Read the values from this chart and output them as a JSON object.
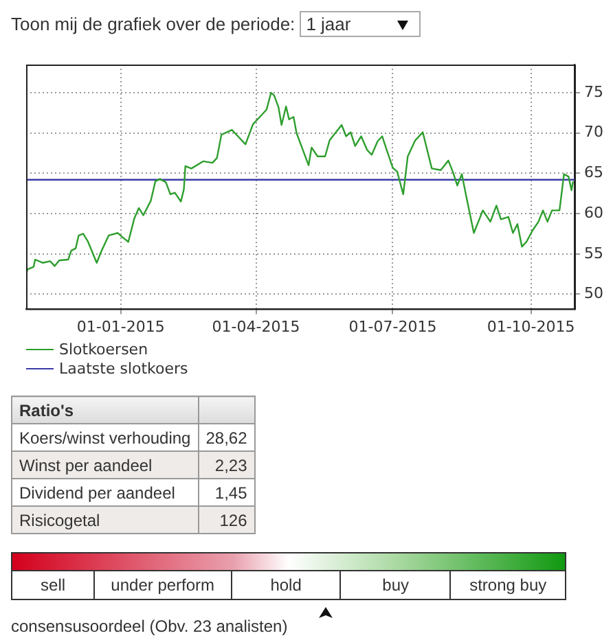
{
  "chart_data": [
    {
      "type": "line",
      "annotations": [
        "Toon mij de grafiek over de periode:",
        "1 jaar"
      ],
      "xlim": [
        "2014-10-30",
        "2015-10-30"
      ],
      "xticks": [
        {
          "value": "2015-01-01",
          "label": "01-01-2015"
        },
        {
          "value": "2015-04-01",
          "label": "01-04-2015"
        },
        {
          "value": "2015-07-01",
          "label": "01-07-2015"
        },
        {
          "value": "2015-10-01",
          "label": "01-10-2015"
        }
      ],
      "ylim": [
        48.2,
        78.5
      ],
      "yticks": [
        50,
        55,
        60,
        65,
        70,
        75
      ],
      "grid": true,
      "legend": "bottom left",
      "series": [
        {
          "name": "Slotkoersen",
          "color": "#2e9e2e",
          "x": [
            "2014-10-30",
            "2014-10-31",
            "2014-11-04",
            "2014-11-05",
            "2014-11-10",
            "2014-11-15",
            "2014-11-18",
            "2014-11-21",
            "2014-11-27",
            "2014-11-29",
            "2014-12-02",
            "2014-12-04",
            "2014-12-07",
            "2014-12-10",
            "2014-12-16",
            "2014-12-19",
            "2014-12-24",
            "2014-12-30",
            "2015-01-02",
            "2015-01-06",
            "2015-01-10",
            "2015-01-13",
            "2015-01-16",
            "2015-01-21",
            "2015-01-24",
            "2015-01-27",
            "2015-01-31",
            "2015-02-03",
            "2015-02-06",
            "2015-02-10",
            "2015-02-12",
            "2015-02-13",
            "2015-02-17",
            "2015-02-25",
            "2015-03-03",
            "2015-03-06",
            "2015-03-09",
            "2015-03-16",
            "2015-03-20",
            "2015-03-25",
            "2015-03-30",
            "2015-04-03",
            "2015-04-08",
            "2015-04-11",
            "2015-04-13",
            "2015-04-16",
            "2015-04-18",
            "2015-04-21",
            "2015-04-23",
            "2015-04-26",
            "2015-04-28",
            "2015-05-01",
            "2015-05-06",
            "2015-05-08",
            "2015-05-12",
            "2015-05-17",
            "2015-05-20",
            "2015-05-28",
            "2015-05-31",
            "2015-06-03",
            "2015-06-06",
            "2015-06-10",
            "2015-06-14",
            "2015-06-17",
            "2015-06-21",
            "2015-06-24",
            "2015-06-27",
            "2015-07-01",
            "2015-07-04",
            "2015-07-08",
            "2015-07-11",
            "2015-07-16",
            "2015-07-21",
            "2015-07-27",
            "2015-08-02",
            "2015-08-07",
            "2015-08-10",
            "2015-08-13",
            "2015-08-16",
            "2015-08-19",
            "2015-08-24",
            "2015-08-27",
            "2015-08-30",
            "2015-09-04",
            "2015-09-08",
            "2015-09-11",
            "2015-09-16",
            "2015-09-19",
            "2015-09-22",
            "2015-09-25",
            "2015-09-28",
            "2015-10-02",
            "2015-10-06",
            "2015-10-09",
            "2015-10-12",
            "2015-10-15",
            "2015-10-20",
            "2015-10-23",
            "2015-10-26",
            "2015-10-28",
            "2015-10-29"
          ],
          "values": [
            52.5,
            53.1,
            53.4,
            54.3,
            53.9,
            54.1,
            53.5,
            54.2,
            54.3,
            55.4,
            55.7,
            57.3,
            57.5,
            56.6,
            53.9,
            55.3,
            57.3,
            57.6,
            57.1,
            56.5,
            59.4,
            60.7,
            59.8,
            61.6,
            64.0,
            64.3,
            63.9,
            62.4,
            62.6,
            61.5,
            63.0,
            65.9,
            65.6,
            66.5,
            66.3,
            66.9,
            69.8,
            70.4,
            69.6,
            68.6,
            71.1,
            71.9,
            72.9,
            75.0,
            74.7,
            73.2,
            71.0,
            73.3,
            71.7,
            72.0,
            70.0,
            68.5,
            66.0,
            68.2,
            67.1,
            67.1,
            69.1,
            71.0,
            69.6,
            70.1,
            68.4,
            69.6,
            67.9,
            67.3,
            69.0,
            69.6,
            67.9,
            65.7,
            65.2,
            62.4,
            67.1,
            69.1,
            70.1,
            65.6,
            65.4,
            66.6,
            65.2,
            63.5,
            64.9,
            62.1,
            57.6,
            59.0,
            60.4,
            59.0,
            61.0,
            59.3,
            59.6,
            57.6,
            58.7,
            55.9,
            56.5,
            57.9,
            59.0,
            60.4,
            59.0,
            60.4,
            60.4,
            64.9,
            64.6,
            62.9,
            64.0
          ]
        },
        {
          "name": "Laatste slotkoers",
          "color": "#3a3aa8",
          "x": [
            "2014-10-30",
            "2015-10-30"
          ],
          "values": [
            64.2,
            64.2
          ]
        }
      ]
    },
    {
      "type": "other",
      "title": "Ratio's",
      "categories": [
        "Koers/winst verhouding",
        "Winst per aandeel",
        "Dividend per aandeel",
        "Risicogetal"
      ],
      "value_labels": [
        "28,62",
        "2,23",
        "1,45",
        "126"
      ]
    },
    {
      "type": "other",
      "categories": [
        "sell",
        "under perform",
        "hold",
        "buy",
        "strong buy"
      ],
      "annotations": [
        "consensusoordeel (Obv. 23 analisten)"
      ]
    }
  ]
}
